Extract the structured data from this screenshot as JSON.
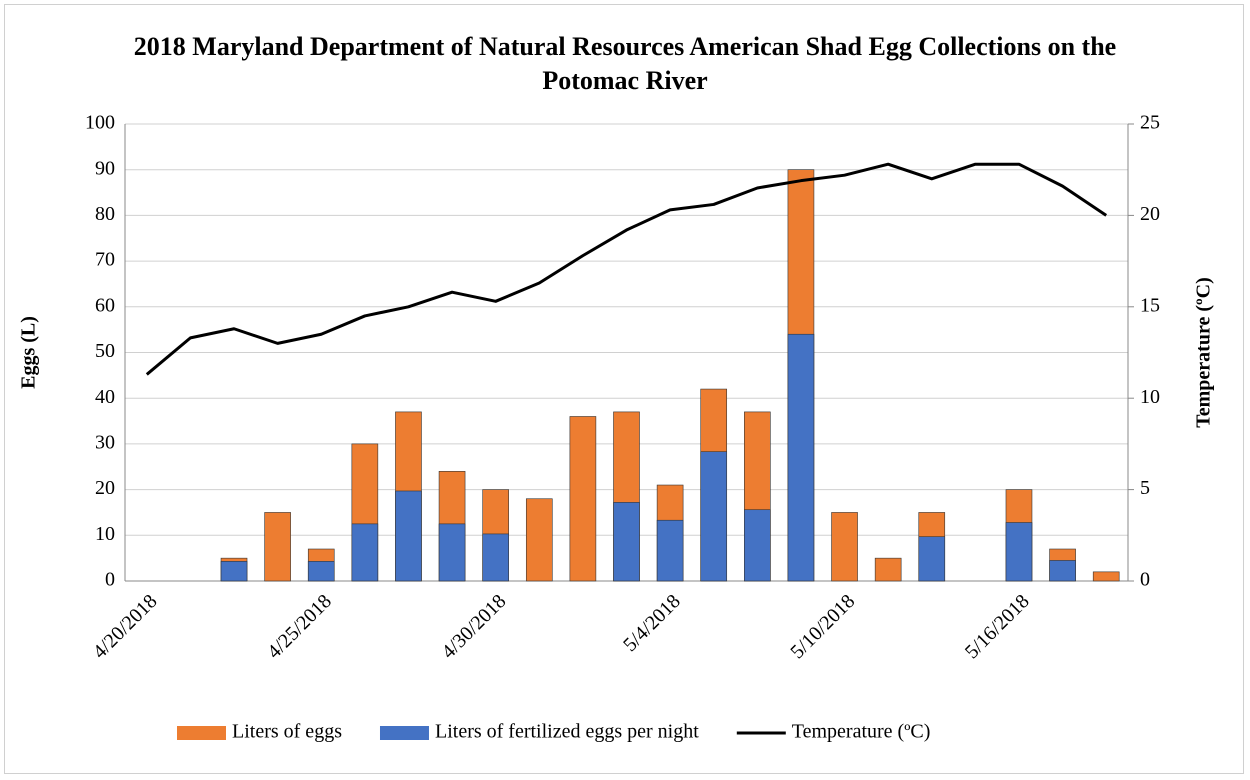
{
  "chart_data": {
    "type": "bar",
    "title": "2018 Maryland Department of Natural Resources American Shad Egg Collections on the Potomac River",
    "ylabel": "Eggs (L)",
    "y2label": "Temperature (ºC)",
    "categories": [
      "4/20/2018",
      null,
      null,
      null,
      "4/25/2018",
      null,
      null,
      null,
      "4/30/2018",
      null,
      null,
      null,
      "5/4/2018",
      null,
      null,
      null,
      "5/10/2018",
      null,
      null,
      null,
      "5/16/2018",
      null,
      null
    ],
    "series": [
      {
        "name": "Liters of eggs",
        "color": "#ed7d31",
        "type": "bar",
        "values": [
          null,
          null,
          5,
          15,
          7,
          30,
          37,
          24,
          20,
          18,
          36,
          37,
          21,
          42,
          37,
          90,
          15,
          5,
          15,
          null,
          20,
          7,
          2
        ]
      },
      {
        "name": "Liters of fertilized eggs per night",
        "color": "#4472c4",
        "type": "bar",
        "values": [
          null,
          null,
          4.3,
          0,
          4.3,
          12.5,
          19.7,
          12.5,
          10.3,
          0,
          0,
          17.2,
          13.3,
          28.3,
          15.6,
          54,
          0,
          0,
          9.7,
          null,
          12.8,
          4.5,
          0
        ]
      },
      {
        "name": "Temperature (ºC)",
        "color": "#000000",
        "type": "line",
        "axis": "y2",
        "values": [
          11.3,
          13.3,
          13.8,
          13.0,
          13.5,
          14.5,
          15.0,
          15.8,
          15.3,
          16.3,
          17.8,
          19.2,
          20.3,
          20.6,
          21.5,
          21.9,
          22.2,
          22.8,
          22.0,
          22.8,
          22.8,
          21.6,
          20.0
        ]
      }
    ],
    "ylim": [
      0,
      100
    ],
    "yticks": [
      0,
      10,
      20,
      30,
      40,
      50,
      60,
      70,
      80,
      90,
      100
    ],
    "y2lim": [
      0,
      25
    ],
    "y2ticks": [
      0,
      5,
      10,
      15,
      20,
      25
    ],
    "grid": true,
    "legend": "bottom"
  }
}
